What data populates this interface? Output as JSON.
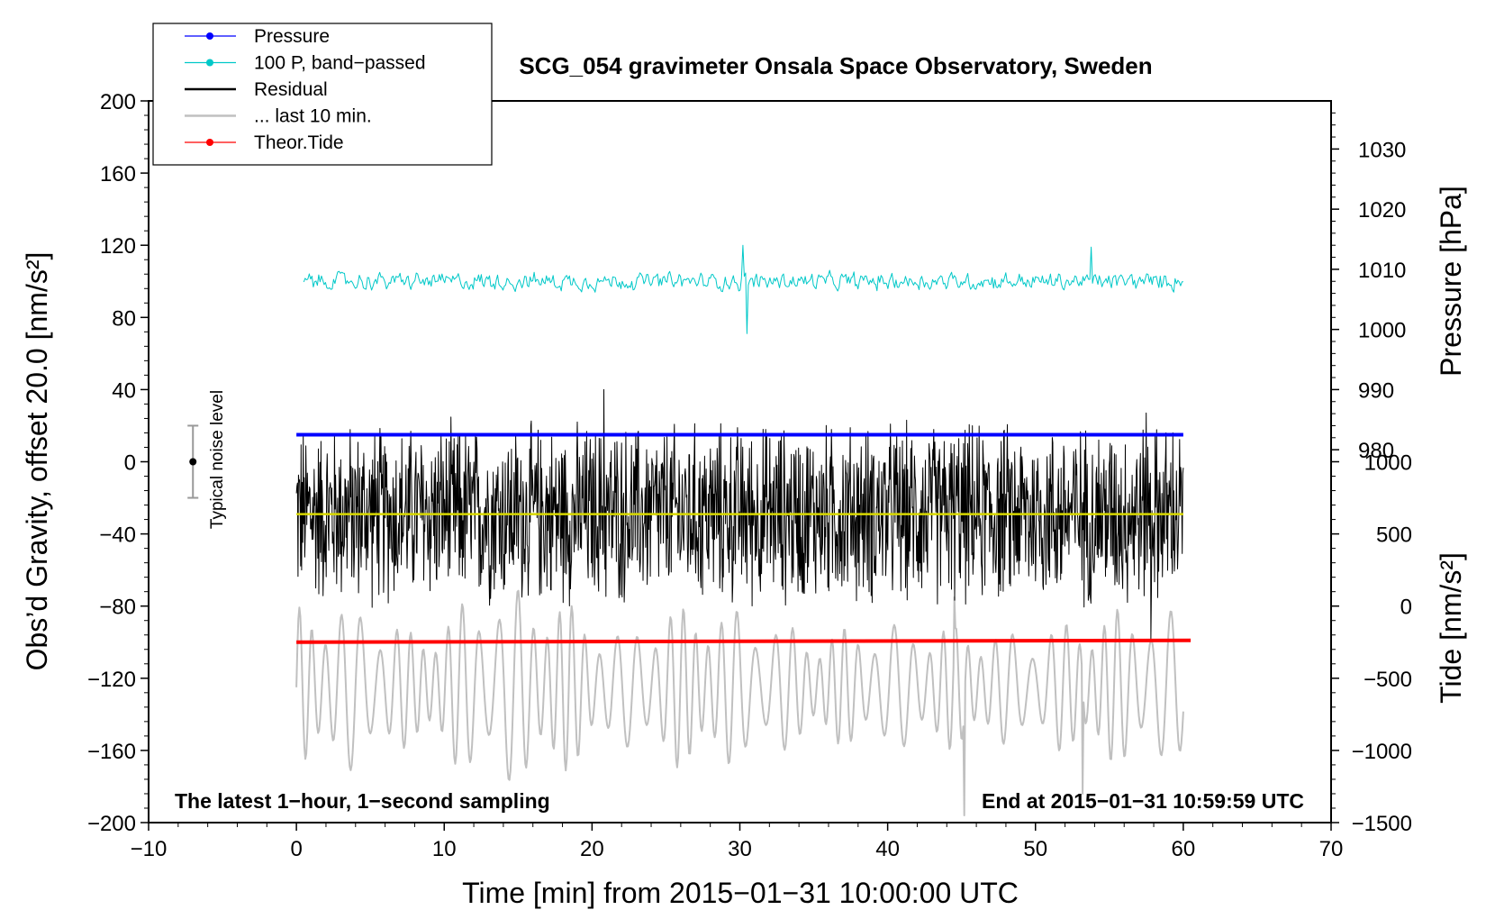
{
  "chart_data": {
    "type": "line",
    "title": "SCG_054 gravimeter Onsala Space Observatory, Sweden",
    "xlabel": "Time [min] from 2015−01−31 10:00:00 UTC",
    "ylabel_left": "Obs’d Gravity, offset 20.0 [nm/s²]",
    "ylabel_right_pressure": "Pressure [hPa]",
    "ylabel_right_tide": "Tide [nm/s²]",
    "annotation_left": "The latest 1−hour, 1−second sampling",
    "annotation_right": "End at 2015−01−31 10:59:59 UTC",
    "noise_label": "Typical noise level",
    "noise_level": {
      "x": -7,
      "center": 0,
      "low": -20,
      "high": 20
    },
    "xlim": [
      -10,
      70
    ],
    "ylim_left": [
      -200,
      200
    ],
    "xticks": [
      -10,
      0,
      10,
      20,
      30,
      40,
      50,
      60,
      70
    ],
    "xtick_labels": [
      "−10",
      "0",
      "10",
      "20",
      "30",
      "40",
      "50",
      "60",
      "70"
    ],
    "yticks_left": [
      -200,
      -160,
      -120,
      -80,
      -40,
      0,
      40,
      80,
      120,
      160,
      200
    ],
    "ytick_labels_left": [
      "−200",
      "−160",
      "−120",
      "−80",
      "−40",
      "0",
      "40",
      "80",
      "120",
      "160",
      "200"
    ],
    "yticks_pressure": [
      980,
      990,
      1000,
      1010,
      1020,
      1030
    ],
    "pressure_axis_map": {
      "value_at_left_0": 978,
      "hpa_per_left_unit": 0.3
    },
    "yticks_tide": [
      -1500,
      -1000,
      -500,
      0,
      500,
      1000
    ],
    "ytick_labels_tide": [
      "−1500",
      "−1000",
      "−500",
      "0",
      "500",
      "1000"
    ],
    "tide_axis_map": {
      "value_at_left_minus_200": -1500,
      "tide_per_left_unit": 12.5
    },
    "legend": [
      {
        "label": "Pressure",
        "color": "#0000ff",
        "marker": true
      },
      {
        "label": "100 P, band−passed",
        "color": "#00c8c8",
        "marker": true
      },
      {
        "label": "Residual",
        "color": "#000000",
        "marker": false
      },
      {
        "label": "... last 10 min.",
        "color": "#c0c0c0",
        "marker": false
      },
      {
        "label": "Theor.Tide",
        "color": "#ff0000",
        "marker": true
      }
    ],
    "series": [
      {
        "name": "Pressure",
        "color": "#0000ff",
        "x": [
          0,
          60
        ],
        "y": [
          15,
          15
        ]
      },
      {
        "name": "100 P, band−passed",
        "color": "#00c8c8",
        "x_range": [
          0.5,
          60
        ],
        "mean": 100,
        "amplitude": [
          -8,
          8
        ],
        "extremes": [
          [
            30.2,
            120
          ],
          [
            30.5,
            71
          ],
          [
            53.8,
            119
          ]
        ]
      },
      {
        "name": "Residual",
        "color": "#000000",
        "x_range": [
          0,
          60
        ],
        "mean": -28,
        "amplitude": [
          -58,
          55
        ],
        "extremes": [
          [
            20.8,
            40
          ],
          [
            57.5,
            27
          ],
          [
            57.8,
            -98
          ]
        ]
      },
      {
        "name": "Residual (smoothed)",
        "color": "#d8d800",
        "x": [
          0,
          60
        ],
        "y": [
          -29,
          -29
        ]
      },
      {
        "name": "... last 10 min.",
        "color": "#c0c0c0",
        "x_range": [
          0,
          60
        ],
        "mean": -125,
        "amplitude": [
          -55,
          55
        ],
        "extremes": [
          [
            44.5,
            -75
          ],
          [
            45.2,
            -196
          ],
          [
            53.2,
            -184
          ]
        ]
      },
      {
        "name": "Theor.Tide",
        "color": "#ff0000",
        "x": [
          0,
          60.5
        ],
        "y": [
          -100,
          -99
        ]
      }
    ]
  }
}
